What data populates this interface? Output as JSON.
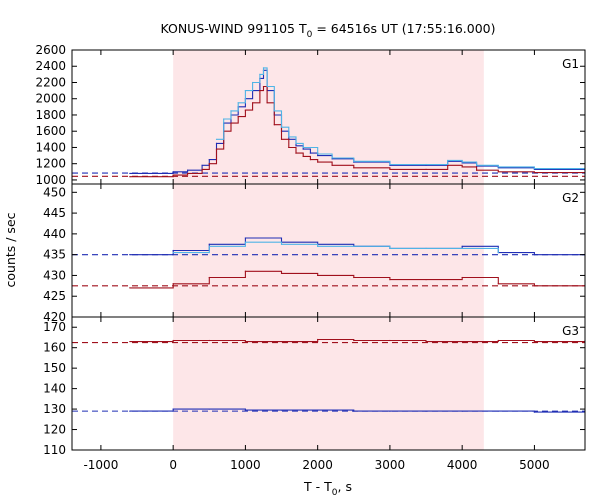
{
  "chart_data": {
    "type": "line",
    "title_prefix": "KONUS-WIND 991105 T",
    "title_sub": "0",
    "title_suffix": " = 64516s UT (17:55:16.000)",
    "ylabel": "counts / sec",
    "xlabel_main": "T - T",
    "xlabel_sub": "0",
    "xlabel_suffix": ", s",
    "xlim": [
      -1400,
      5700
    ],
    "xticks": [
      -1000,
      0,
      1000,
      2000,
      3000,
      4000,
      5000
    ],
    "xtick_labels": [
      "-1000",
      "0",
      "1000",
      "2000",
      "3000",
      "4000",
      "5000"
    ],
    "highlight_interval": [
      0,
      4300
    ],
    "colors": {
      "highlight": "#fde6e8",
      "blue": "#1f2db4",
      "red": "#a0101c",
      "cyan": "#4fb4e6",
      "frame": "#000000"
    },
    "panels": [
      {
        "label": "G1",
        "ylim": [
          950,
          2600
        ],
        "yticks": [
          1000,
          1200,
          1400,
          1600,
          1800,
          2000,
          2200,
          2400,
          2600
        ],
        "ytick_labels": [
          "1000",
          "1200",
          "1400",
          "1600",
          "1800",
          "2000",
          "2200",
          "2400",
          "2600"
        ],
        "background": {
          "blue": 1085,
          "red": 1045
        },
        "series": [
          {
            "color": "blue",
            "x": [
              -600,
              0,
              200,
              400,
              500,
              600,
              700,
              800,
              900,
              1000,
              1100,
              1200,
              1250,
              1300,
              1400,
              1500,
              1600,
              1700,
              1800,
              1900,
              2000,
              2200,
              2500,
              3000,
              3500,
              3800,
              4000,
              4200,
              4500,
              5000,
              5700
            ],
            "y": [
              1080,
              1100,
              1120,
              1180,
              1250,
              1450,
              1700,
              1800,
              1900,
              2000,
              2100,
              2250,
              2350,
              2100,
              1800,
              1600,
              1500,
              1420,
              1380,
              1330,
              1300,
              1260,
              1220,
              1180,
              1180,
              1230,
              1210,
              1170,
              1150,
              1130,
              1120
            ]
          },
          {
            "color": "red",
            "x": [
              -600,
              0,
              200,
              400,
              500,
              600,
              700,
              800,
              900,
              1000,
              1100,
              1200,
              1250,
              1300,
              1400,
              1500,
              1600,
              1700,
              1800,
              1900,
              2000,
              2200,
              2500,
              3000,
              3500,
              3800,
              4000,
              4200,
              4500,
              5000,
              5700
            ],
            "y": [
              1040,
              1060,
              1080,
              1130,
              1200,
              1380,
              1600,
              1700,
              1780,
              1860,
              1950,
              2100,
              2150,
              1950,
              1680,
              1500,
              1400,
              1330,
              1290,
              1250,
              1220,
              1180,
              1150,
              1130,
              1130,
              1180,
              1160,
              1120,
              1100,
              1090,
              1080
            ]
          },
          {
            "color": "cyan",
            "x": [
              600,
              700,
              800,
              900,
              1000,
              1100,
              1200,
              1250,
              1300,
              1400,
              1500,
              1600,
              1700,
              1800,
              2000,
              2200,
              2500,
              3000,
              3500,
              3800,
              4000,
              4200,
              4500,
              5000,
              5700
            ],
            "y": [
              1500,
              1750,
              1850,
              1950,
              2100,
              2200,
              2300,
              2380,
              2150,
              1850,
              1650,
              1530,
              1450,
              1400,
              1320,
              1270,
              1230,
              1190,
              1190,
              1240,
              1220,
              1180,
              1160,
              1140,
              1130
            ]
          }
        ]
      },
      {
        "label": "G2",
        "ylim": [
          420,
          452
        ],
        "yticks": [
          420,
          425,
          430,
          435,
          440,
          445,
          450
        ],
        "ytick_labels": [
          "420",
          "425",
          "430",
          "435",
          "440",
          "445",
          "450"
        ],
        "background": {
          "blue": 435,
          "red": 427.5
        },
        "series": [
          {
            "color": "blue",
            "x": [
              -600,
              0,
              500,
              1000,
              1500,
              2000,
              2500,
              3000,
              3500,
              4000,
              4500,
              5000,
              5700
            ],
            "y": [
              435,
              436,
              437.5,
              439,
              438,
              437.5,
              437,
              436.5,
              436.5,
              437,
              435.5,
              435,
              435
            ]
          },
          {
            "color": "red",
            "x": [
              -600,
              0,
              500,
              1000,
              1500,
              2000,
              2500,
              3000,
              3500,
              4000,
              4500,
              5000,
              5700
            ],
            "y": [
              427,
              428,
              429.5,
              431,
              430.5,
              430,
              429.5,
              429,
              429,
              429.5,
              428,
              427.5,
              427.5
            ]
          },
          {
            "color": "cyan",
            "x": [
              0,
              500,
              1000,
              1500,
              2000,
              2500,
              3000,
              3500,
              4000,
              4500
            ],
            "y": [
              435.5,
              437,
              438,
              437.5,
              437,
              437,
              436.5,
              436.5,
              436.5,
              435.5
            ]
          }
        ]
      },
      {
        "label": "G3",
        "ylim": [
          110,
          175
        ],
        "yticks": [
          110,
          120,
          130,
          140,
          150,
          160,
          170
        ],
        "ytick_labels": [
          "110",
          "120",
          "130",
          "140",
          "150",
          "160",
          "170"
        ],
        "background": {
          "blue": 129,
          "red": 162.5
        },
        "series": [
          {
            "color": "blue",
            "x": [
              -600,
              0,
              500,
              1000,
              1500,
              2000,
              2500,
              3000,
              3500,
              4000,
              4500,
              5000,
              5700
            ],
            "y": [
              129,
              130,
              130,
              129.5,
              129.5,
              129.5,
              129,
              129,
              129,
              129,
              129,
              128.5,
              128.5
            ]
          },
          {
            "color": "red",
            "x": [
              -600,
              0,
              500,
              1000,
              1500,
              2000,
              2500,
              3000,
              3500,
              4000,
              4500,
              5000,
              5700
            ],
            "y": [
              163,
              163.5,
              163.5,
              163,
              163,
              164,
              163.5,
              163.5,
              163,
              163,
              163.5,
              163,
              163.5
            ]
          }
        ]
      }
    ]
  }
}
